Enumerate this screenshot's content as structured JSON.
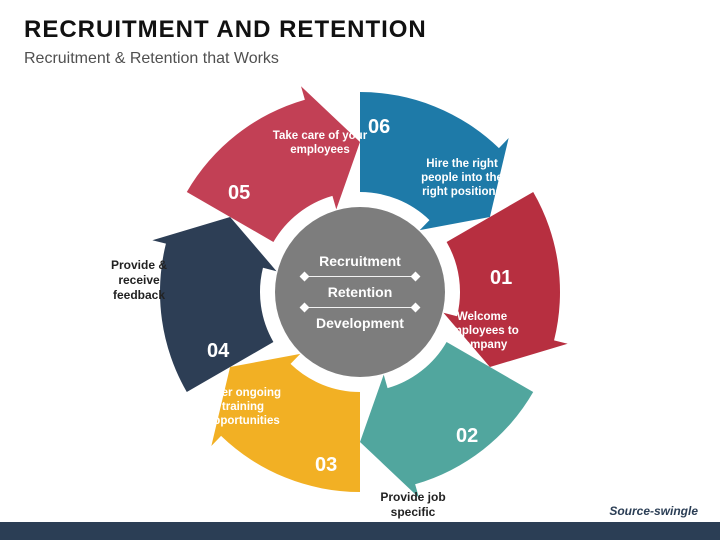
{
  "header": {
    "title": "RECRUITMENT AND RETENTION",
    "subtitle": "Recruitment & Retention that Works"
  },
  "source": "Source-swingle",
  "center": {
    "w1": "Recruitment",
    "w2": "Retention",
    "w3": "Development",
    "bg": "#7d7d7d"
  },
  "diagram": {
    "type": "circular-arrow-cycle",
    "segments": 6,
    "outer_radius": 200,
    "inner_radius": 100,
    "colors": [
      "#1e7aa8",
      "#b72f40",
      "#51a69e",
      "#f2b024",
      "#2d3e55",
      "#c24055"
    ],
    "bg": "#ffffff"
  },
  "seg": [
    {
      "num": "01",
      "label": "Hire the right people into the right positions",
      "text_color": "#ffffff"
    },
    {
      "num": "02",
      "label": "Welcome employees to company",
      "text_color": "#ffffff"
    },
    {
      "num": "03",
      "label": "Provide job specific training",
      "text_color": "#ffffff",
      "outside": true
    },
    {
      "num": "04",
      "label": "Offer ongoing training opportunities",
      "text_color": "#ffffff"
    },
    {
      "num": "05",
      "label": "Provide & receive feedback",
      "text_color": "#222222",
      "outside": true
    },
    {
      "num": "06",
      "label": "Take care of your employees",
      "text_color": "#ffffff"
    }
  ]
}
